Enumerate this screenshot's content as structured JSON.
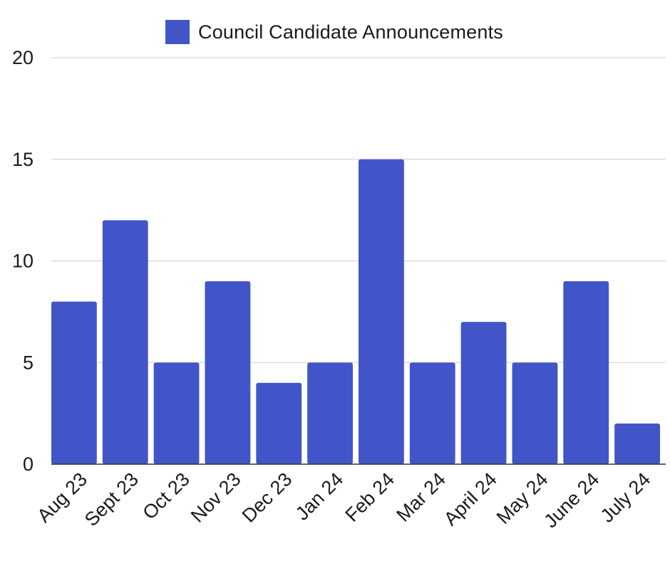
{
  "chart_data": {
    "type": "bar",
    "categories": [
      "Aug 23",
      "Sept 23",
      "Oct 23",
      "Nov 23",
      "Dec 23",
      "Jan 24",
      "Feb 24",
      "Mar 24",
      "April 24",
      "May 24",
      "June 24",
      "July 24"
    ],
    "series": [
      {
        "name": "Council Candidate Announcements",
        "values": [
          8,
          12,
          5,
          9,
          4,
          5,
          15,
          5,
          7,
          5,
          9,
          2
        ],
        "color": "#4255c8"
      }
    ],
    "ylim": [
      0,
      20
    ],
    "yticks": [
      0,
      5,
      10,
      15,
      20
    ],
    "grid": true,
    "legend_position": "top-center"
  }
}
